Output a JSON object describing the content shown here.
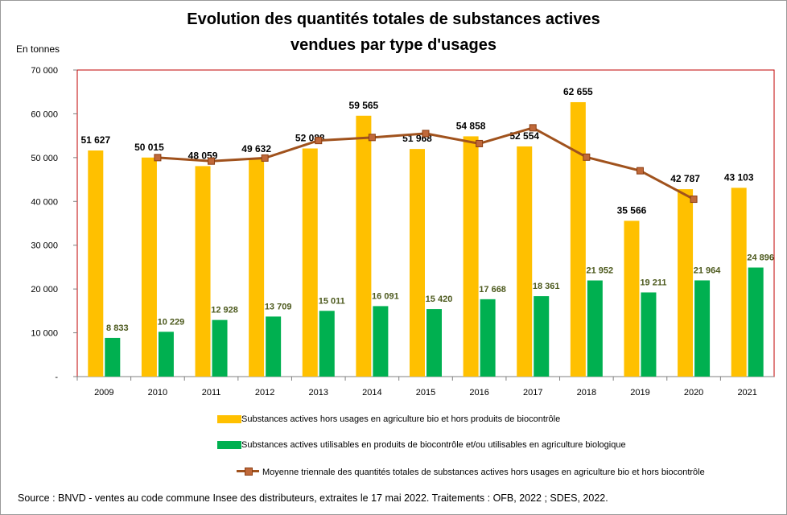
{
  "chart_data": {
    "type": "bar",
    "title_line1": "Evolution des quantités totales de substances actives",
    "title_line2": "vendues par type d'usages",
    "ylabel": "En tonnes",
    "ylim": [
      0,
      70000
    ],
    "y_ticks": [
      {
        "value": 0,
        "label": "-"
      },
      {
        "value": 10000,
        "label": "10 000"
      },
      {
        "value": 20000,
        "label": "20 000"
      },
      {
        "value": 30000,
        "label": "30 000"
      },
      {
        "value": 40000,
        "label": "40 000"
      },
      {
        "value": 50000,
        "label": "50 000"
      },
      {
        "value": 60000,
        "label": "60 000"
      },
      {
        "value": 70000,
        "label": "70 000"
      }
    ],
    "categories": [
      "2009",
      "2010",
      "2011",
      "2012",
      "2013",
      "2014",
      "2015",
      "2016",
      "2017",
      "2018",
      "2019",
      "2020",
      "2021"
    ],
    "series": [
      {
        "name": "Substances actives hors usages en agriculture bio et hors produits de biocontrôle",
        "kind": "bar",
        "color": "#ffc000",
        "values": [
          51627,
          50015,
          48059,
          49632,
          52088,
          59565,
          51968,
          54858,
          52554,
          62655,
          35566,
          42787,
          43103
        ],
        "labels": [
          "51 627",
          "50 015",
          "48 059",
          "49 632",
          "52 088",
          "59 565",
          "51 968",
          "54 858",
          "52 554",
          "62 655",
          "35 566",
          "42 787",
          "43 103"
        ]
      },
      {
        "name": "Substances actives utilisables en  produits de biocontrôle et/ou utilisables en agriculture biologique",
        "kind": "bar",
        "color": "#00b050",
        "values": [
          8833,
          10229,
          12928,
          13709,
          15011,
          16091,
          15420,
          17668,
          18361,
          21952,
          19211,
          21964,
          24896
        ],
        "labels": [
          "8 833",
          "10 229",
          "12 928",
          "13 709",
          "15 011",
          "16 091",
          "15 420",
          "17 668",
          "18 361",
          "21 952",
          "19 211",
          "21 964",
          "24 896"
        ]
      },
      {
        "name": "Moyenne triennale des quantités totales de substances actives hors usages en agriculture bio et hors biocontrôle",
        "kind": "line",
        "color": "#a0521d",
        "values": [
          null,
          50000,
          49200,
          49900,
          53900,
          54600,
          55500,
          53200,
          56800,
          50100,
          47000,
          40500,
          null
        ]
      }
    ],
    "grid": false,
    "legend_position": "bottom",
    "source": "Source : BNVD - ventes au code commune Insee des distributeurs, extraites le 17 mai 2022. Traitements : OFB, 2022 ; SDES, 2022."
  },
  "colors": {
    "plot_border": "#c00000",
    "axis": "#808080",
    "line_marker_fill": "#c0693a",
    "line_marker_stroke": "#8a3d12"
  }
}
